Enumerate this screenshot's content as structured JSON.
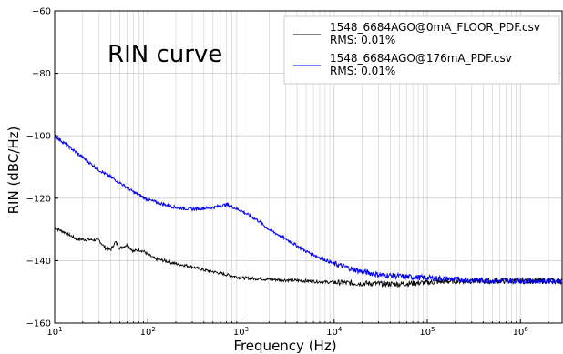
{
  "chart_data": {
    "type": "line",
    "title": "",
    "annotation": "RIN curve",
    "xlabel": "Frequency (Hz)",
    "ylabel": "RIN (dBC/Hz)",
    "xscale": "log",
    "xlim": [
      10,
      2800000
    ],
    "ylim": [
      -160,
      -60
    ],
    "yticks": [
      -160,
      -140,
      -120,
      -100,
      -80,
      -60
    ],
    "xticks": [
      {
        "value": 10,
        "base": "10",
        "exp": "1"
      },
      {
        "value": 100,
        "base": "10",
        "exp": "2"
      },
      {
        "value": 1000,
        "base": "10",
        "exp": "3"
      },
      {
        "value": 10000,
        "base": "10",
        "exp": "4"
      },
      {
        "value": 100000,
        "base": "10",
        "exp": "5"
      },
      {
        "value": 1000000,
        "base": "10",
        "exp": "6"
      }
    ],
    "grid": "major and minor",
    "legend_position": "top-right",
    "series": [
      {
        "name": "1548_6684AGO@0mA_FLOOR_PDF.csv",
        "rms": "RMS: 0.01%",
        "color": "#000000",
        "x": [
          10,
          13,
          17,
          20,
          25,
          30,
          35,
          40,
          45,
          50,
          60,
          70,
          80,
          90,
          100,
          120,
          150,
          200,
          250,
          300,
          400,
          500,
          700,
          1000,
          2000,
          5000,
          10000,
          20000,
          50000,
          100000,
          200000,
          500000,
          1000000,
          2000000,
          2800000
        ],
        "y": [
          -129.5,
          -131,
          -133,
          -133.2,
          -133.3,
          -133.5,
          -136,
          -136.5,
          -134,
          -136,
          -135,
          -137,
          -136.5,
          -137,
          -138,
          -139.5,
          -140,
          -141,
          -141.5,
          -142,
          -143,
          -143.5,
          -144.5,
          -145.5,
          -146,
          -146.5,
          -147,
          -147.3,
          -147.5,
          -147,
          -146.5,
          -146.5,
          -146.5,
          -146.5,
          -146.5
        ]
      },
      {
        "name": "1548_6684AGO@176mA_PDF.csv",
        "rms": "RMS: 0.01%",
        "color": "#0000ee",
        "x": [
          10,
          15,
          20,
          30,
          50,
          70,
          100,
          150,
          200,
          300,
          500,
          700,
          1000,
          1500,
          2000,
          3000,
          5000,
          7000,
          10000,
          15000,
          20000,
          30000,
          50000,
          70000,
          100000,
          200000,
          500000,
          1000000,
          2000000,
          2800000
        ],
        "y": [
          -100,
          -104,
          -107,
          -111,
          -115,
          -118,
          -120.5,
          -122,
          -123,
          -123.5,
          -123,
          -122,
          -124,
          -127,
          -130,
          -133,
          -137,
          -139,
          -141,
          -142.5,
          -143.5,
          -144.5,
          -145,
          -145.3,
          -145.5,
          -146,
          -146.5,
          -146.5,
          -146.5,
          -146.5
        ]
      }
    ]
  },
  "colors": {
    "grid": "#cccccc",
    "axis": "#000000",
    "series_black": "#000000",
    "series_blue": "#0000ee"
  }
}
